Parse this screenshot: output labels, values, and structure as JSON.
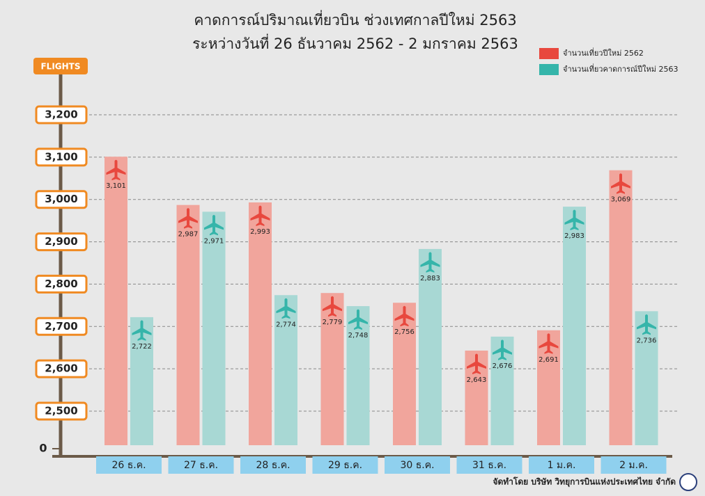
{
  "chart_data": {
    "type": "bar",
    "title": "คาดการณ์ปริมาณเที่ยวบิน ช่วงเทศกาลปีใหม่ 2563",
    "subtitle": "ระหว่างวันที่ 26 ธันวาคม 2562 - 2 มกราคม 2563",
    "y_label": "FLIGHTS",
    "categories": [
      "26 ธ.ค.",
      "27 ธ.ค.",
      "28 ธ.ค.",
      "29 ธ.ค.",
      "30 ธ.ค.",
      "31 ธ.ค.",
      "1 ม.ค.",
      "2 ม.ค."
    ],
    "series": [
      {
        "name": "จำนวนเที่ยวปีใหม่ 2562",
        "color": "#e8483e",
        "bar_color": "#f1a59c",
        "values": [
          3101,
          2987,
          2993,
          2779,
          2756,
          2643,
          2691,
          3069
        ],
        "value_labels": [
          "3,101",
          "2,987",
          "2,993",
          "2,779",
          "2,756",
          "2,643",
          "2,691",
          "3,069"
        ]
      },
      {
        "name": "จำนวนเที่ยวคาดการณ์ปีใหม่ 2563",
        "color": "#35b5aa",
        "bar_color": "#a8d8d4",
        "values": [
          2722,
          2971,
          2774,
          2748,
          2883,
          2676,
          2983,
          2736
        ],
        "value_labels": [
          "2,722",
          "2,971",
          "2,774",
          "2,748",
          "2,883",
          "2,676",
          "2,983",
          "2,736"
        ]
      }
    ],
    "ylim": [
      0,
      3200
    ],
    "yticks": [
      0,
      {
        "value": 2500,
        "label": "2,500"
      },
      {
        "value": 2600,
        "label": "2,600"
      },
      {
        "value": 2700,
        "label": "2,700"
      },
      {
        "value": 2800,
        "label": "2,800"
      },
      {
        "value": 2900,
        "label": "2,900"
      },
      {
        "value": 3000,
        "label": "3,000"
      },
      {
        "value": 3100,
        "label": "3,100"
      },
      {
        "value": 3200,
        "label": "3,200"
      }
    ],
    "broken_axis": true,
    "grid": true,
    "legend": "top-right",
    "footer": "จัดทำโดย  บริษัท  วิทยุการบินแห่งประเทศไทย  จำกัด"
  }
}
